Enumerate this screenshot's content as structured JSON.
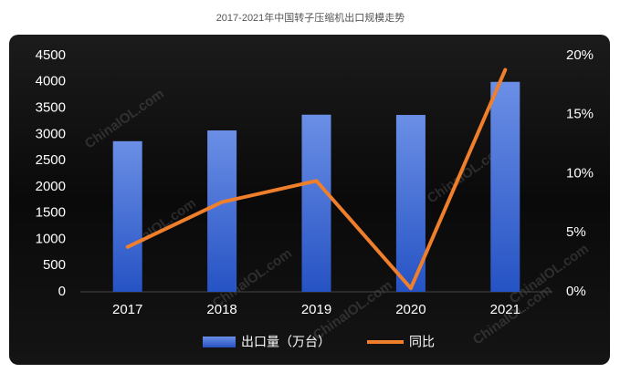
{
  "chart_data": {
    "type": "bar-line",
    "title": "2017-2021年中国转子压缩机出口规模走势",
    "watermark": "ChinaIOL.com",
    "categories": [
      "2017",
      "2018",
      "2019",
      "2020",
      "2021"
    ],
    "series": [
      {
        "name": "出口量（万台）",
        "type": "bar",
        "color": "#3a66d4",
        "values": [
          2870,
          3075,
          3375,
          3370,
          4000
        ]
      },
      {
        "name": "同比",
        "type": "line",
        "color": "#f07f2c",
        "axis": "y2",
        "values": [
          3.8,
          7.6,
          9.4,
          0.3,
          18.8
        ]
      }
    ],
    "ylim": [
      0,
      4500
    ],
    "yticks": [
      0,
      500,
      1000,
      1500,
      2000,
      2500,
      3000,
      3500,
      4000,
      4500
    ],
    "y2lim": [
      0,
      20
    ],
    "y2ticks": [
      {
        "value": 0,
        "label": "0%"
      },
      {
        "value": 5,
        "label": "5%"
      },
      {
        "value": 10,
        "label": "10%"
      },
      {
        "value": 15,
        "label": "15%"
      },
      {
        "value": 20,
        "label": "20%"
      }
    ],
    "legend": "bottom"
  }
}
